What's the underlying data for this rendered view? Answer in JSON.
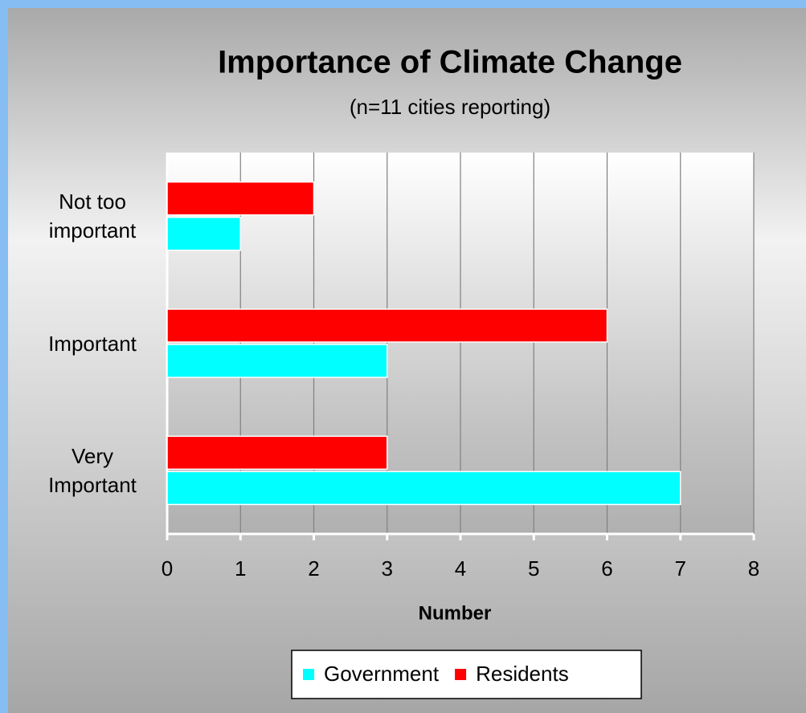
{
  "chart_data": {
    "type": "bar",
    "orientation": "horizontal",
    "title": "Importance of Climate Change",
    "subtitle": "(n=11 cities reporting)",
    "x_label": "Number",
    "categories": [
      "Not too important",
      "Important",
      "Very Important"
    ],
    "series": [
      {
        "name": "Government",
        "color": "#00ffff",
        "values": [
          1,
          3,
          7
        ]
      },
      {
        "name": "Residents",
        "color": "#ff0000",
        "values": [
          2,
          6,
          3
        ]
      }
    ],
    "xlim": [
      0,
      8
    ],
    "xticks": [
      0,
      1,
      2,
      3,
      4,
      5,
      6,
      7,
      8
    ],
    "grid": true,
    "legend": "bottom"
  }
}
